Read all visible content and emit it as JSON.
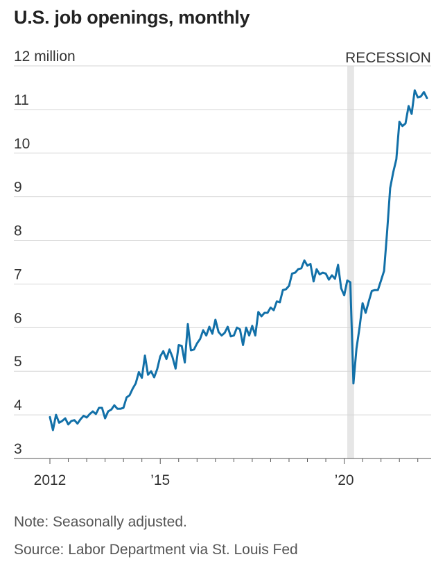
{
  "title": "U.S. job openings, monthly",
  "note": "Note: Seasonally adjusted.",
  "source": "Source: Labor Department via St. Louis Fed",
  "colors": {
    "line": "#1270a8",
    "recession": "#e6e6e6",
    "grid": "#d6d6d6",
    "axis": "#555555"
  },
  "chart_data": {
    "type": "line",
    "title": "U.S. job openings, monthly",
    "ylabel": "",
    "xlabel": "",
    "ylim": [
      3,
      12
    ],
    "y_ticks": [
      3,
      4,
      5,
      6,
      7,
      8,
      9,
      10,
      11,
      12
    ],
    "y_tick_labels": [
      "3",
      "4",
      "5",
      "6",
      "7",
      "8",
      "9",
      "10",
      "11",
      "12 million"
    ],
    "x_range": [
      "2012-01",
      "2022-04"
    ],
    "x_tick_labels": [
      {
        "date": "2012-01",
        "label": "2012"
      },
      {
        "date": "2015-01",
        "label": "’15"
      },
      {
        "date": "2020-01",
        "label": "’20"
      }
    ],
    "x_minor_ticks": [
      "2012-01",
      "2013-01",
      "2014-01",
      "2015-01",
      "2016-01",
      "2017-01",
      "2018-01",
      "2019-01",
      "2020-01",
      "2021-01",
      "2022-01"
    ],
    "grid": true,
    "recession": {
      "label": "RECESSION",
      "start": "2020-02",
      "end": "2020-04"
    },
    "series": [
      {
        "x": [
          "2012-01",
          "2012-02",
          "2012-03",
          "2012-04",
          "2012-05",
          "2012-06",
          "2012-07",
          "2012-08",
          "2012-09",
          "2012-10",
          "2012-11",
          "2012-12",
          "2013-01",
          "2013-02",
          "2013-03",
          "2013-04",
          "2013-05",
          "2013-06",
          "2013-07",
          "2013-08",
          "2013-09",
          "2013-10",
          "2013-11",
          "2013-12",
          "2014-01",
          "2014-02",
          "2014-03",
          "2014-04",
          "2014-05",
          "2014-06",
          "2014-07",
          "2014-08",
          "2014-09",
          "2014-10",
          "2014-11",
          "2014-12",
          "2015-01",
          "2015-02",
          "2015-03",
          "2015-04",
          "2015-05",
          "2015-06",
          "2015-07",
          "2015-08",
          "2015-09",
          "2015-10",
          "2015-11",
          "2015-12",
          "2016-01",
          "2016-02",
          "2016-03",
          "2016-04",
          "2016-05",
          "2016-06",
          "2016-07",
          "2016-08",
          "2016-09",
          "2016-10",
          "2016-11",
          "2016-12",
          "2017-01",
          "2017-02",
          "2017-03",
          "2017-04",
          "2017-05",
          "2017-06",
          "2017-07",
          "2017-08",
          "2017-09",
          "2017-10",
          "2017-11",
          "2017-12",
          "2018-01",
          "2018-02",
          "2018-03",
          "2018-04",
          "2018-05",
          "2018-06",
          "2018-07",
          "2018-08",
          "2018-09",
          "2018-10",
          "2018-11",
          "2018-12",
          "2019-01",
          "2019-02",
          "2019-03",
          "2019-04",
          "2019-05",
          "2019-06",
          "2019-07",
          "2019-08",
          "2019-09",
          "2019-10",
          "2019-11",
          "2019-12",
          "2020-01",
          "2020-02",
          "2020-03",
          "2020-04",
          "2020-05",
          "2020-06",
          "2020-07",
          "2020-08",
          "2020-09",
          "2020-10",
          "2020-11",
          "2020-12",
          "2021-01",
          "2021-02",
          "2021-03",
          "2021-04",
          "2021-05",
          "2021-06",
          "2021-07",
          "2021-08",
          "2021-09",
          "2021-10",
          "2021-11",
          "2021-12",
          "2022-01",
          "2022-02",
          "2022-03",
          "2022-04"
        ],
        "values": [
          3.95,
          3.65,
          4.0,
          3.82,
          3.86,
          3.92,
          3.78,
          3.86,
          3.88,
          3.8,
          3.9,
          3.98,
          3.94,
          4.02,
          4.08,
          4.02,
          4.16,
          4.16,
          3.92,
          4.08,
          4.12,
          4.22,
          4.14,
          4.14,
          4.16,
          4.4,
          4.45,
          4.6,
          4.72,
          4.98,
          4.85,
          5.36,
          4.92,
          5.0,
          4.86,
          5.05,
          5.34,
          5.46,
          5.28,
          5.5,
          5.32,
          5.06,
          5.6,
          5.58,
          5.2,
          6.08,
          5.48,
          5.5,
          5.64,
          5.74,
          5.94,
          5.82,
          6.02,
          5.86,
          6.18,
          5.9,
          5.82,
          5.88,
          6.02,
          5.8,
          5.82,
          6.0,
          5.96,
          5.6,
          6.0,
          5.82,
          6.04,
          5.82,
          6.36,
          6.26,
          6.34,
          6.34,
          6.46,
          6.4,
          6.6,
          6.58,
          6.86,
          6.88,
          6.96,
          7.24,
          7.26,
          7.34,
          7.36,
          7.54,
          7.42,
          7.46,
          7.06,
          7.34,
          7.22,
          7.26,
          7.24,
          7.1,
          7.2,
          7.12,
          7.44,
          6.9,
          6.74,
          7.08,
          7.04,
          4.72,
          5.52,
          6.0,
          6.56,
          6.34,
          6.6,
          6.84,
          6.86,
          6.86,
          7.08,
          7.3,
          8.2,
          9.2,
          9.56,
          9.86,
          10.72,
          10.62,
          10.68,
          11.08,
          10.9,
          11.44,
          11.28,
          11.3,
          11.4,
          11.26
        ]
      }
    ]
  }
}
